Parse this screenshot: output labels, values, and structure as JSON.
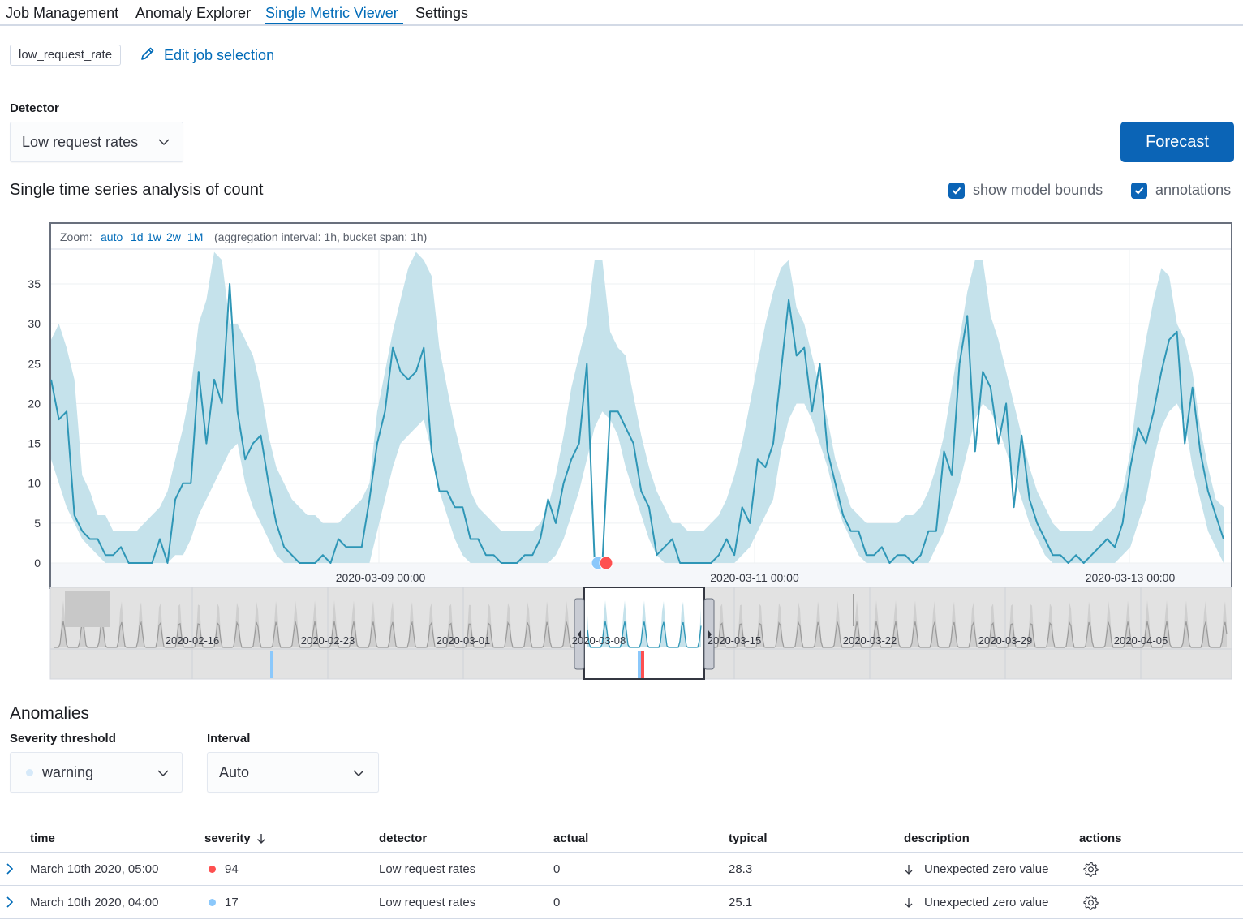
{
  "tabs": [
    {
      "label": "Job Management",
      "active": false
    },
    {
      "label": "Anomaly Explorer",
      "active": false
    },
    {
      "label": "Single Metric Viewer",
      "active": true
    },
    {
      "label": "Settings",
      "active": false
    }
  ],
  "job": {
    "badge": "low_request_rate",
    "edit_label": "Edit job selection"
  },
  "detector": {
    "label": "Detector",
    "value": "Low request rates"
  },
  "forecast_label": "Forecast",
  "chart_title": "Single time series analysis of count",
  "checkboxes": {
    "model_bounds": "show model bounds",
    "annotations": "annotations"
  },
  "zoom": {
    "prefix": "Zoom:",
    "options": [
      "auto",
      "1d",
      "1w",
      "2w",
      "1M"
    ],
    "interval_text": "(aggregation interval: 1h, bucket span: 1h)"
  },
  "colors": {
    "accent": "#006bb8",
    "primary_button": "#0b64b6",
    "line": "#2e96b6",
    "bounds": "#c5e2eb",
    "critical": "#fe5050",
    "warning": "#8bc8fb",
    "context_fill": "#dcdcdc"
  },
  "chart_data": {
    "type": "line",
    "x_axis_ticks": [
      "2020-03-09 00:00",
      "2020-03-11 00:00",
      "2020-03-13 00:00"
    ],
    "yticks": [
      0,
      5,
      10,
      15,
      20,
      25,
      30,
      35
    ],
    "ylim": [
      0,
      39
    ],
    "series": [
      {
        "values": [
          23,
          18,
          19,
          6,
          4,
          3,
          3,
          1,
          1,
          2,
          0,
          0,
          0,
          0,
          3,
          0,
          8,
          10,
          10,
          24,
          15,
          23,
          20,
          35,
          19,
          13,
          15,
          16,
          10,
          5,
          2,
          1,
          0,
          0,
          0,
          1,
          0,
          3,
          2,
          2,
          2,
          8,
          15,
          19,
          27,
          24,
          23,
          24,
          27,
          14,
          9,
          9,
          7,
          7,
          3,
          3,
          1,
          1,
          0,
          0,
          0,
          1,
          1,
          3,
          8,
          5,
          10,
          13,
          15,
          25,
          0,
          0,
          19,
          19,
          17,
          15,
          9,
          7,
          1,
          2,
          3,
          0,
          0,
          0,
          0,
          0,
          1,
          3,
          1,
          7,
          5,
          13,
          12,
          15,
          24,
          33,
          26,
          27,
          19,
          25,
          14,
          10,
          6,
          4,
          4,
          1,
          1,
          2,
          0,
          1,
          1,
          0,
          1,
          4,
          4,
          14,
          11,
          25,
          31,
          14,
          24,
          22,
          15,
          20,
          7,
          16,
          8,
          5,
          3,
          1,
          1,
          0,
          1,
          0,
          1,
          2,
          3,
          2,
          5,
          12,
          17,
          15,
          19,
          24,
          28,
          29,
          15,
          22,
          14,
          9,
          6,
          3
        ],
        "lower": [
          13,
          10,
          7,
          5,
          3,
          2,
          1,
          0,
          0,
          0,
          0,
          0,
          0,
          0,
          0,
          0,
          1,
          1,
          3,
          6,
          8,
          10,
          12,
          14,
          15,
          10,
          7,
          5,
          3,
          1,
          0,
          0,
          0,
          0,
          0,
          0,
          0,
          0,
          0,
          0,
          0,
          0,
          4,
          8,
          12,
          15,
          16,
          17,
          18,
          14,
          9,
          6,
          3,
          1,
          0,
          0,
          0,
          0,
          0,
          0,
          0,
          0,
          0,
          0,
          0,
          1,
          3,
          6,
          9,
          13,
          17,
          19,
          18,
          16,
          12,
          9,
          6,
          3,
          1,
          0,
          0,
          0,
          0,
          0,
          0,
          0,
          0,
          0,
          0,
          1,
          2,
          4,
          6,
          8,
          14,
          18,
          20,
          20,
          18,
          15,
          12,
          8,
          5,
          3,
          1,
          0,
          0,
          0,
          0,
          0,
          0,
          0,
          0,
          0,
          2,
          4,
          7,
          10,
          14,
          18,
          20,
          19,
          17,
          14,
          11,
          8,
          5,
          3,
          1,
          0,
          0,
          0,
          0,
          0,
          0,
          0,
          0,
          0,
          1,
          2,
          5,
          8,
          13,
          17,
          19,
          20,
          18,
          12,
          8,
          4,
          2,
          0
        ],
        "upper": [
          28,
          30,
          27,
          23,
          11,
          9,
          6,
          6,
          4,
          4,
          4,
          4,
          5,
          6,
          7,
          9,
          13,
          17,
          22,
          30,
          33,
          39,
          38,
          30,
          30,
          28,
          26,
          22,
          16,
          12,
          10,
          8,
          7,
          6,
          6,
          5,
          5,
          5,
          6,
          7,
          8,
          10,
          19,
          24,
          29,
          33,
          37,
          39,
          38,
          36,
          27,
          22,
          17,
          13,
          9,
          7,
          6,
          5,
          4,
          4,
          4,
          4,
          4,
          5,
          7,
          11,
          16,
          22,
          26,
          30,
          38,
          38,
          29,
          27,
          26,
          21,
          16,
          12,
          9,
          7,
          5,
          5,
          4,
          4,
          4,
          5,
          6,
          8,
          11,
          15,
          20,
          25,
          30,
          34,
          37,
          38,
          32,
          30,
          26,
          22,
          18,
          13,
          10,
          7,
          6,
          5,
          5,
          5,
          5,
          5,
          6,
          6,
          7,
          9,
          12,
          16,
          22,
          28,
          34,
          38,
          38,
          31,
          28,
          24,
          20,
          16,
          12,
          9,
          7,
          5,
          4,
          4,
          4,
          4,
          4,
          5,
          6,
          7,
          9,
          14,
          22,
          28,
          33,
          37,
          36,
          30,
          28,
          24,
          17,
          12,
          8,
          7
        ],
        "x_range": [
          "2020-03-07 21:00",
          "2020-03-14 04:00"
        ]
      }
    ],
    "anomaly_markers": [
      {
        "time": "March 10th 2020, 04:00",
        "value": 0,
        "severity": 17
      },
      {
        "time": "March 10th 2020, 05:00",
        "value": 0,
        "severity": 94
      }
    ]
  },
  "context_chart": {
    "tick_labels": [
      "2020-02-16",
      "2020-02-23",
      "2020-03-01",
      "2020-03-08",
      "2020-03-15",
      "2020-03-22",
      "2020-03-29",
      "2020-04-05"
    ],
    "selection_range": [
      "2020-03-08",
      "2020-03-14"
    ]
  },
  "anomalies": {
    "title": "Anomalies",
    "severity": {
      "label": "Severity threshold",
      "value": "warning"
    },
    "interval": {
      "label": "Interval",
      "value": "Auto"
    },
    "columns": [
      "time",
      "severity",
      "detector",
      "actual",
      "typical",
      "description",
      "actions"
    ],
    "rows": [
      {
        "time": "March 10th 2020, 05:00",
        "severity": "94",
        "severity_level": "critical",
        "detector": "Low request rates",
        "actual": "0",
        "typical": "28.3",
        "description": "Unexpected zero value"
      },
      {
        "time": "March 10th 2020, 04:00",
        "severity": "17",
        "severity_level": "warning",
        "detector": "Low request rates",
        "actual": "0",
        "typical": "25.1",
        "description": "Unexpected zero value"
      }
    ]
  }
}
